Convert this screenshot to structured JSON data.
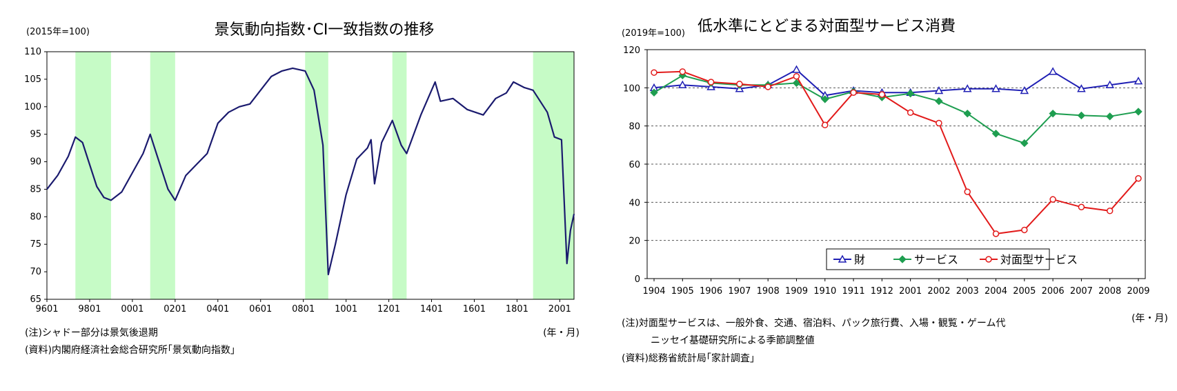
{
  "chart_data": [
    {
      "type": "line",
      "title": "景気動向指数･CI一致指数の推移",
      "unit_label": "(2015年=100)",
      "xlabel": "(年・月)",
      "ylim": [
        65,
        110
      ],
      "yticks": [
        65,
        70,
        75,
        80,
        85,
        90,
        95,
        100,
        105,
        110
      ],
      "x_tick_labels": [
        "9601",
        "9801",
        "0001",
        "0201",
        "0401",
        "0601",
        "0801",
        "1001",
        "1201",
        "1401",
        "1601",
        "1801",
        "2001"
      ],
      "x_range": [
        "1996-01",
        "2020-09"
      ],
      "grid": false,
      "recession_shading": [
        {
          "start": "1997-05",
          "end": "1999-01"
        },
        {
          "start": "2000-11",
          "end": "2002-01"
        },
        {
          "start": "2008-02",
          "end": "2009-03"
        },
        {
          "start": "2012-03",
          "end": "2012-11"
        },
        {
          "start": "2018-10",
          "end": "2020-09"
        }
      ],
      "series": [
        {
          "color": "#1a1a6e",
          "points": [
            [
              "1996-01",
              85.0
            ],
            [
              "1996-07",
              87.5
            ],
            [
              "1997-01",
              91.0
            ],
            [
              "1997-05",
              94.5
            ],
            [
              "1997-09",
              93.5
            ],
            [
              "1998-01",
              89.5
            ],
            [
              "1998-05",
              85.5
            ],
            [
              "1998-09",
              83.5
            ],
            [
              "1999-01",
              83.0
            ],
            [
              "1999-07",
              84.5
            ],
            [
              "2000-01",
              88.0
            ],
            [
              "2000-07",
              91.5
            ],
            [
              "2000-11",
              95.0
            ],
            [
              "2001-03",
              91.0
            ],
            [
              "2001-09",
              85.0
            ],
            [
              "2002-01",
              83.0
            ],
            [
              "2002-07",
              87.5
            ],
            [
              "2003-01",
              89.5
            ],
            [
              "2003-07",
              91.5
            ],
            [
              "2004-01",
              97.0
            ],
            [
              "2004-07",
              99.0
            ],
            [
              "2005-01",
              100.0
            ],
            [
              "2005-07",
              100.5
            ],
            [
              "2006-01",
              103.0
            ],
            [
              "2006-07",
              105.5
            ],
            [
              "2007-01",
              106.5
            ],
            [
              "2007-07",
              107.0
            ],
            [
              "2008-02",
              106.5
            ],
            [
              "2008-07",
              103.0
            ],
            [
              "2008-12",
              93.0
            ],
            [
              "2009-03",
              69.5
            ],
            [
              "2009-07",
              75.0
            ],
            [
              "2010-01",
              84.0
            ],
            [
              "2010-07",
              90.5
            ],
            [
              "2011-01",
              92.5
            ],
            [
              "2011-03",
              94.0
            ],
            [
              "2011-05",
              86.0
            ],
            [
              "2011-09",
              93.5
            ],
            [
              "2012-03",
              97.5
            ],
            [
              "2012-08",
              93.0
            ],
            [
              "2012-11",
              91.5
            ],
            [
              "2013-07",
              98.5
            ],
            [
              "2014-03",
              104.5
            ],
            [
              "2014-06",
              101.0
            ],
            [
              "2015-01",
              101.5
            ],
            [
              "2015-09",
              99.5
            ],
            [
              "2016-06",
              98.5
            ],
            [
              "2017-01",
              101.5
            ],
            [
              "2017-07",
              102.5
            ],
            [
              "2017-11",
              104.5
            ],
            [
              "2018-05",
              103.5
            ],
            [
              "2018-10",
              103.0
            ],
            [
              "2019-01",
              101.5
            ],
            [
              "2019-06",
              99.0
            ],
            [
              "2019-10",
              94.5
            ],
            [
              "2020-02",
              94.0
            ],
            [
              "2020-05",
              71.5
            ],
            [
              "2020-07",
              77.5
            ],
            [
              "2020-09",
              80.5
            ]
          ]
        }
      ],
      "notes": [
        "(注)シャドー部分は景気後退期",
        "(資料)内閣府経済社会総合研究所｢景気動向指数｣"
      ]
    },
    {
      "type": "line",
      "title": "低水準にとどまる対面型サービス消費",
      "unit_label": "(2019年=100)",
      "xlabel": "(年・月)",
      "ylim": [
        0,
        120
      ],
      "yticks": [
        0,
        20,
        40,
        60,
        80,
        100,
        120
      ],
      "grid": true,
      "legend_position": "bottom-center",
      "categories": [
        "1904",
        "1905",
        "1906",
        "1907",
        "1908",
        "1909",
        "1910",
        "1911",
        "1912",
        "2001",
        "2002",
        "2003",
        "2004",
        "2005",
        "2006",
        "2007",
        "2008",
        "2009"
      ],
      "series": [
        {
          "name": "財",
          "color": "#1f1fb4",
          "marker": "triangle",
          "values": [
            100,
            101.5,
            100.5,
            99.5,
            101.5,
            109.5,
            96,
            98.5,
            97.5,
            97.5,
            98.5,
            99.5,
            99.5,
            98.5,
            108.5,
            99.5,
            101.5,
            103.5
          ]
        },
        {
          "name": "サービス",
          "color": "#1e9e50",
          "marker": "diamond",
          "values": [
            97.5,
            106.5,
            102.5,
            101.5,
            101.5,
            102.5,
            94,
            98,
            95,
            97,
            93,
            86.5,
            76,
            71,
            86.5,
            85.5,
            85,
            87.5
          ]
        },
        {
          "name": "対面型サービス",
          "color": "#e21a1a",
          "marker": "circle",
          "values": [
            108,
            108.5,
            103,
            102,
            100.5,
            106,
            80.5,
            97.5,
            96.5,
            87,
            81.5,
            45.5,
            23.5,
            25.5,
            41.5,
            37.5,
            35.5,
            52.5
          ]
        }
      ],
      "notes": [
        "(注)対面型サービスは、一般外食、交通、宿泊料、パック旅行費、入場・観覧・ゲーム代",
        "ニッセイ基礎研究所による季節調整値",
        "(資料)総務省統計局｢家計調査｣"
      ]
    }
  ]
}
